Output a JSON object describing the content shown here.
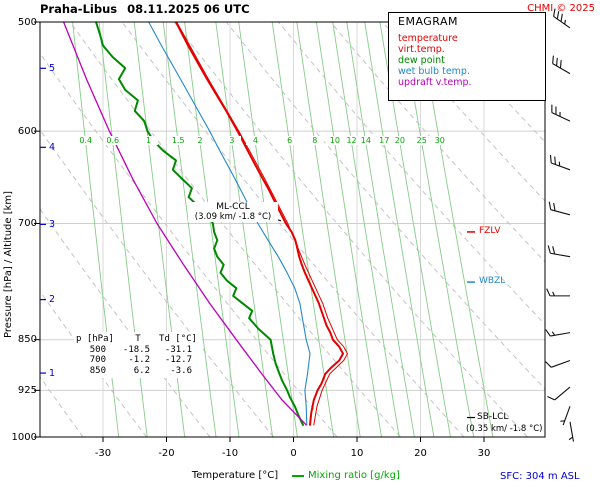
{
  "header": {
    "station": "Praha-Libus",
    "datetime": "08.11.2025 06 UTC",
    "copyright": "CHMI © 2025"
  },
  "legend": {
    "title": "EMAGRAM",
    "items": [
      {
        "id": "temperature",
        "label": "temperature",
        "color": "#e30000"
      },
      {
        "id": "virt-temp",
        "label": "virt.temp.",
        "color": "#e30000"
      },
      {
        "id": "dew-point",
        "label": "dew point",
        "color": "#008800"
      },
      {
        "id": "wet-bulb",
        "label": "wet bulb temp.",
        "color": "#2288cc"
      },
      {
        "id": "updraft",
        "label": "updraft v.temp.",
        "color": "#bb00bb"
      }
    ]
  },
  "axes": {
    "pressure_label": "Pressure [hPa]",
    "separator": " / ",
    "altitude_label": "Altitude [km]",
    "x_label": "Temperature [°C]",
    "mixing_label": "Mixing ratio [g/kg]",
    "pressure_ticks": [
      500,
      600,
      700,
      850,
      925,
      1000
    ],
    "altitude_ticks": [
      5,
      4,
      3,
      2,
      1
    ],
    "temp_ticks": [
      -30,
      -20,
      -10,
      0,
      10,
      20,
      30
    ],
    "altitude_color": "#0000cc"
  },
  "mixing_ratio": {
    "values": [
      0.4,
      0.6,
      1,
      1.5,
      2,
      3,
      4,
      6,
      8,
      10,
      12,
      14,
      17,
      20,
      25,
      30
    ],
    "line_color": "#88cc88",
    "label_color": "#00aa00"
  },
  "table": {
    "headers": [
      "p [hPa]",
      "T",
      "Td [°C]"
    ],
    "rows": [
      [
        "500",
        "-18.5",
        "-31.1"
      ],
      [
        "700",
        "-1.2",
        "-12.7"
      ],
      [
        "850",
        "6.2",
        "-3.6"
      ]
    ]
  },
  "annotations": {
    "ml_ccl": {
      "line1": "ML-CCL",
      "line2": "(3.09 km/ -1.8 °C)",
      "p": 697,
      "t": -1.8,
      "color": "#000000"
    },
    "fzlv": {
      "label": "FZLV",
      "p": 710,
      "color": "#e30000"
    },
    "wbzl": {
      "label": "WBZL",
      "p": 772,
      "color": "#2288cc"
    },
    "sb_lcl": {
      "line1": "SB-LCL",
      "line2": "(0.35 km/ -1.8 °C)",
      "p": 968,
      "color": "#000000"
    },
    "sfc": {
      "label": "SFC: 304 m ASL",
      "color": "#0000cc"
    }
  },
  "chart_data": {
    "type": "line",
    "title": "EMAGRAM sounding Praha-Libus 08.11.2025 06 UTC",
    "x_axis": {
      "label": "Temperature [°C]",
      "ticks": [
        -30,
        -20,
        -10,
        0,
        10,
        20,
        30
      ],
      "range": [
        -40,
        40
      ]
    },
    "y_axis": {
      "label": "Pressure [hPa]",
      "scale": "log",
      "range": [
        1000,
        500
      ],
      "ticks": [
        500,
        600,
        700,
        850,
        925,
        1000
      ]
    },
    "series": [
      {
        "id": "temperature",
        "name": "temperature",
        "color": "#e30000",
        "width": 2,
        "points": [
          [
            980,
            2.6
          ],
          [
            960,
            2.8
          ],
          [
            950,
            3.0
          ],
          [
            940,
            3.2
          ],
          [
            925,
            3.8
          ],
          [
            915,
            4.4
          ],
          [
            900,
            5.0
          ],
          [
            890,
            6.0
          ],
          [
            880,
            7.2
          ],
          [
            870,
            7.8
          ],
          [
            860,
            7.2
          ],
          [
            850,
            6.2
          ],
          [
            840,
            5.8
          ],
          [
            830,
            5.2
          ],
          [
            820,
            4.8
          ],
          [
            810,
            4.4
          ],
          [
            800,
            4.0
          ],
          [
            780,
            2.9
          ],
          [
            760,
            1.8
          ],
          [
            750,
            1.3
          ],
          [
            740,
            0.9
          ],
          [
            720,
            0.3
          ],
          [
            710,
            -0.3
          ],
          [
            700,
            -1.2
          ],
          [
            680,
            -2.6
          ],
          [
            660,
            -4.0
          ],
          [
            650,
            -4.8
          ],
          [
            640,
            -5.6
          ],
          [
            620,
            -7.2
          ],
          [
            600,
            -8.8
          ],
          [
            580,
            -10.6
          ],
          [
            560,
            -12.6
          ],
          [
            550,
            -13.6
          ],
          [
            540,
            -14.6
          ],
          [
            520,
            -16.6
          ],
          [
            500,
            -18.5
          ]
        ]
      },
      {
        "id": "virt-temp",
        "name": "virt.temp.",
        "color": "#e30000",
        "width": 1,
        "points": [
          [
            980,
            3.2
          ],
          [
            950,
            3.7
          ],
          [
            925,
            4.5
          ],
          [
            900,
            5.7
          ],
          [
            880,
            7.9
          ],
          [
            870,
            8.5
          ],
          [
            860,
            7.9
          ],
          [
            850,
            6.9
          ],
          [
            820,
            5.4
          ],
          [
            800,
            4.6
          ],
          [
            750,
            1.8
          ],
          [
            700,
            -0.9
          ],
          [
            650,
            -4.5
          ],
          [
            600,
            -8.6
          ],
          [
            550,
            -13.4
          ],
          [
            500,
            -18.4
          ]
        ]
      },
      {
        "id": "dew-point",
        "name": "dew point",
        "color": "#008800",
        "width": 2,
        "points": [
          [
            980,
            1.5
          ],
          [
            965,
            0.8
          ],
          [
            950,
            0.2
          ],
          [
            935,
            -0.6
          ],
          [
            925,
            -1.0
          ],
          [
            910,
            -1.8
          ],
          [
            900,
            -2.2
          ],
          [
            885,
            -2.8
          ],
          [
            870,
            -3.2
          ],
          [
            850,
            -3.6
          ],
          [
            835,
            -5.5
          ],
          [
            820,
            -7.0
          ],
          [
            810,
            -6.5
          ],
          [
            800,
            -8.0
          ],
          [
            790,
            -9.5
          ],
          [
            780,
            -9.0
          ],
          [
            770,
            -10.5
          ],
          [
            760,
            -11.5
          ],
          [
            750,
            -11.0
          ],
          [
            740,
            -12.0
          ],
          [
            730,
            -12.5
          ],
          [
            720,
            -12.0
          ],
          [
            710,
            -12.5
          ],
          [
            700,
            -12.7
          ],
          [
            690,
            -13.5
          ],
          [
            680,
            -15.0
          ],
          [
            670,
            -16.5
          ],
          [
            660,
            -16.0
          ],
          [
            650,
            -17.5
          ],
          [
            640,
            -19.0
          ],
          [
            630,
            -18.5
          ],
          [
            620,
            -20.5
          ],
          [
            610,
            -22.0
          ],
          [
            600,
            -23.0
          ],
          [
            590,
            -23.5
          ],
          [
            580,
            -25.0
          ],
          [
            570,
            -24.5
          ],
          [
            560,
            -26.5
          ],
          [
            550,
            -27.5
          ],
          [
            540,
            -26.5
          ],
          [
            530,
            -28.5
          ],
          [
            520,
            -30.0
          ],
          [
            510,
            -30.5
          ],
          [
            500,
            -31.1
          ]
        ]
      },
      {
        "id": "wet-bulb",
        "name": "wet bulb temp.",
        "color": "#2288cc",
        "width": 1.1,
        "points": [
          [
            980,
            2.1
          ],
          [
            950,
            2.0
          ],
          [
            925,
            1.8
          ],
          [
            900,
            2.2
          ],
          [
            870,
            2.6
          ],
          [
            850,
            2.0
          ],
          [
            820,
            1.4
          ],
          [
            800,
            1.0
          ],
          [
            780,
            0.2
          ],
          [
            760,
            -1.0
          ],
          [
            740,
            -2.4
          ],
          [
            720,
            -4.0
          ],
          [
            700,
            -5.6
          ],
          [
            680,
            -7.0
          ],
          [
            650,
            -9.2
          ],
          [
            620,
            -11.6
          ],
          [
            600,
            -13.2
          ],
          [
            580,
            -15.0
          ],
          [
            550,
            -17.8
          ],
          [
            520,
            -20.8
          ],
          [
            500,
            -22.8
          ]
        ]
      },
      {
        "id": "updraft",
        "name": "updraft v.temp.",
        "color": "#bb00bb",
        "width": 1.3,
        "points": [
          [
            980,
            2.0
          ],
          [
            940,
            -1.8
          ],
          [
            900,
            -5.0
          ],
          [
            850,
            -9.0
          ],
          [
            800,
            -13.2
          ],
          [
            750,
            -17.3
          ],
          [
            700,
            -21.5
          ],
          [
            650,
            -25.3
          ],
          [
            600,
            -29.0
          ],
          [
            550,
            -32.6
          ],
          [
            500,
            -36.2
          ]
        ]
      }
    ],
    "wind_barbs": [
      {
        "p": 505,
        "dir": 305,
        "spd": 35
      },
      {
        "p": 545,
        "dir": 300,
        "spd": 30
      },
      {
        "p": 590,
        "dir": 295,
        "spd": 25
      },
      {
        "p": 640,
        "dir": 290,
        "spd": 25
      },
      {
        "p": 690,
        "dir": 285,
        "spd": 20
      },
      {
        "p": 740,
        "dir": 280,
        "spd": 20
      },
      {
        "p": 790,
        "dir": 270,
        "spd": 15
      },
      {
        "p": 840,
        "dir": 260,
        "spd": 15
      },
      {
        "p": 880,
        "dir": 250,
        "spd": 10
      },
      {
        "p": 920,
        "dir": 230,
        "spd": 10
      },
      {
        "p": 950,
        "dir": 200,
        "spd": 5
      },
      {
        "p": 975,
        "dir": 170,
        "spd": 5
      }
    ],
    "layout": {
      "grid": true,
      "legend_position": "top-right",
      "dry_adiabats_K": {
        "from": 240,
        "to": 380,
        "step": 10
      }
    }
  }
}
